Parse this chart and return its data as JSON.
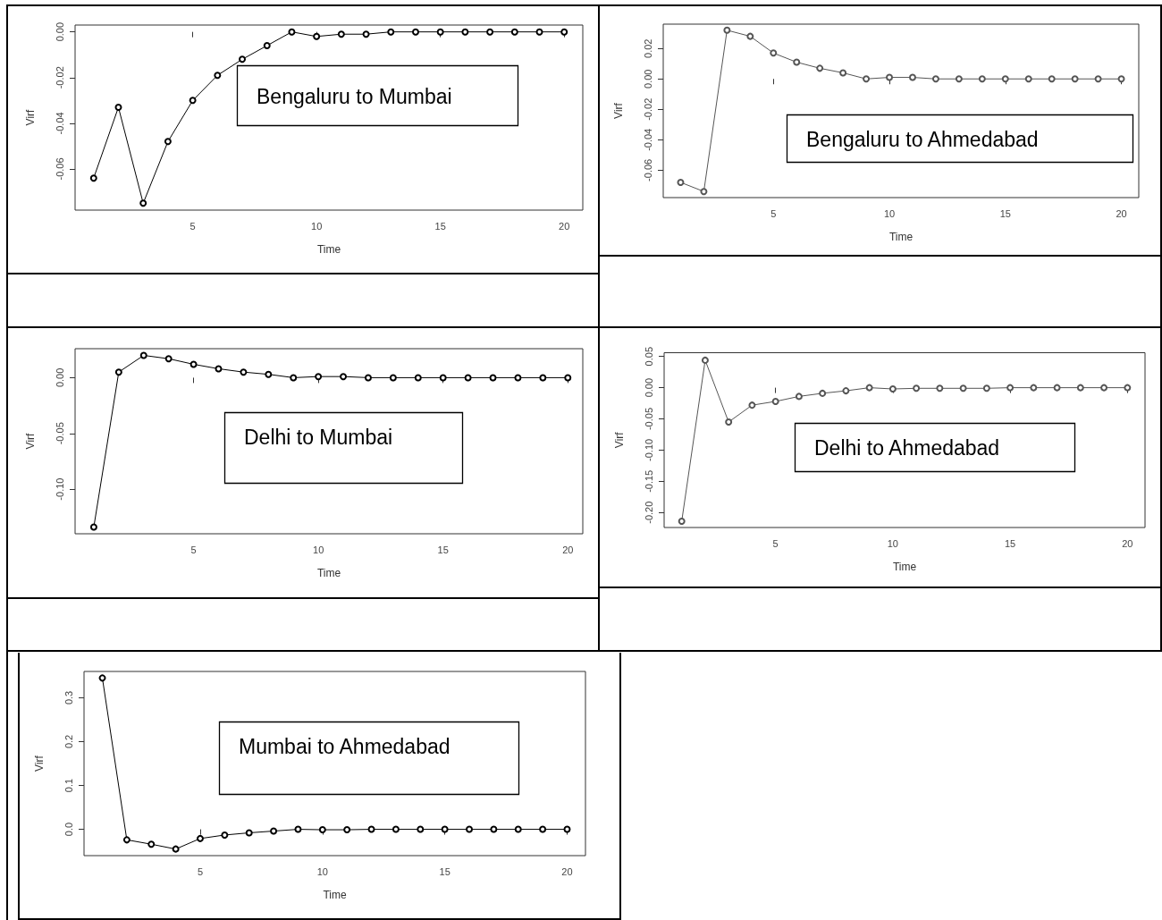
{
  "chart_data": [
    {
      "type": "line",
      "title": "Bengaluru to Mumbai",
      "xlabel": "Time",
      "ylabel": "Virf",
      "marker": "circle",
      "grid": false,
      "x": [
        1,
        2,
        3,
        4,
        5,
        6,
        7,
        8,
        9,
        10,
        11,
        12,
        13,
        14,
        15,
        16,
        17,
        18,
        19,
        20
      ],
      "series": [
        {
          "color": "#000000",
          "values": [
            -0.064,
            -0.033,
            -0.075,
            -0.048,
            -0.03,
            -0.019,
            -0.012,
            -0.006,
            0.0,
            -0.002,
            -0.001,
            -0.001,
            0,
            0,
            0,
            0,
            0,
            0,
            0,
            0
          ]
        }
      ],
      "xlim": [
        0.25,
        20.75
      ],
      "xticks": [
        5,
        10,
        15,
        20
      ],
      "ylim": [
        -0.078,
        0.003
      ],
      "yticks": [
        {
          "value": -0.06,
          "label": "-0.06"
        },
        {
          "value": -0.04,
          "label": "-0.04"
        },
        {
          "value": -0.02,
          "label": "-0.02"
        },
        {
          "value": 0,
          "label": "0.00"
        }
      ]
    },
    {
      "type": "line",
      "title": "Bengaluru to Ahmedabad",
      "xlabel": "Time",
      "ylabel": "Virf",
      "marker": "circle",
      "grid": false,
      "x": [
        1,
        2,
        3,
        4,
        5,
        6,
        7,
        8,
        9,
        10,
        11,
        12,
        13,
        14,
        15,
        16,
        17,
        18,
        19,
        20
      ],
      "series": [
        {
          "color": "#555555",
          "values": [
            -0.068,
            -0.074,
            0.032,
            0.028,
            0.017,
            0.011,
            0.007,
            0.004,
            0,
            0.001,
            0.001,
            0,
            0,
            0,
            0,
            0,
            0,
            0,
            0,
            0
          ]
        }
      ],
      "xlim": [
        0.25,
        20.75
      ],
      "xticks": [
        5,
        10,
        15,
        20
      ],
      "ylim": [
        -0.078,
        0.036
      ],
      "yticks": [
        {
          "value": -0.06,
          "label": "-0.06"
        },
        {
          "value": -0.04,
          "label": "-0.04"
        },
        {
          "value": -0.02,
          "label": "-0.02"
        },
        {
          "value": 0,
          "label": "0.00"
        },
        {
          "value": 0.02,
          "label": "0.02"
        }
      ]
    },
    {
      "type": "line",
      "title": "Delhi to Mumbai",
      "xlabel": "Time",
      "ylabel": "Virf",
      "marker": "circle",
      "grid": false,
      "x": [
        1,
        2,
        3,
        4,
        5,
        6,
        7,
        8,
        9,
        10,
        11,
        12,
        13,
        14,
        15,
        16,
        17,
        18,
        19,
        20
      ],
      "series": [
        {
          "color": "#000000",
          "values": [
            -0.134,
            0.005,
            0.02,
            0.017,
            0.012,
            0.008,
            0.005,
            0.003,
            0,
            0.001,
            0.001,
            0,
            0,
            0,
            0,
            0,
            0,
            0,
            0,
            0
          ]
        }
      ],
      "xlim": [
        0.25,
        20.6
      ],
      "xticks": [
        5,
        10,
        15,
        20
      ],
      "ylim": [
        -0.14,
        0.026
      ],
      "yticks": [
        {
          "value": -0.1,
          "label": "-0.10"
        },
        {
          "value": -0.05,
          "label": "-0.05"
        },
        {
          "value": 0,
          "label": "0.00"
        }
      ]
    },
    {
      "type": "line",
      "title": "Delhi to Ahmedabad",
      "xlabel": "Time",
      "ylabel": "Virf",
      "marker": "circle",
      "grid": false,
      "x": [
        1,
        2,
        3,
        4,
        5,
        6,
        7,
        8,
        9,
        10,
        11,
        12,
        13,
        14,
        15,
        16,
        17,
        18,
        19,
        20
      ],
      "series": [
        {
          "color": "#555555",
          "values": [
            -0.214,
            0.044,
            -0.055,
            -0.028,
            -0.022,
            -0.014,
            -0.009,
            -0.005,
            0,
            -0.002,
            -0.001,
            -0.001,
            -0.001,
            -0.001,
            0,
            0,
            0,
            0,
            0,
            0
          ]
        }
      ],
      "xlim": [
        0.25,
        20.75
      ],
      "xticks": [
        5,
        10,
        15,
        20
      ],
      "ylim": [
        -0.224,
        0.056
      ],
      "yticks": [
        {
          "value": -0.2,
          "label": "-0.20"
        },
        {
          "value": -0.15,
          "label": "-0.15"
        },
        {
          "value": -0.1,
          "label": "-0.10"
        },
        {
          "value": -0.05,
          "label": "-0.05"
        },
        {
          "value": 0,
          "label": "0.00"
        },
        {
          "value": 0.05,
          "label": "0.05"
        }
      ]
    },
    {
      "type": "line",
      "title": "Mumbai to Ahmedabad",
      "xlabel": "Time",
      "ylabel": "Virf",
      "marker": "circle",
      "grid": false,
      "x": [
        1,
        2,
        3,
        4,
        5,
        6,
        7,
        8,
        9,
        10,
        11,
        12,
        13,
        14,
        15,
        16,
        17,
        18,
        19,
        20
      ],
      "series": [
        {
          "color": "#000000",
          "values": [
            0.345,
            -0.024,
            -0.034,
            -0.045,
            -0.021,
            -0.013,
            -0.008,
            -0.004,
            0,
            -0.001,
            -0.001,
            0,
            0,
            0,
            0,
            0,
            0,
            0,
            0,
            0
          ]
        }
      ],
      "xlim": [
        0.25,
        20.75
      ],
      "xticks": [
        5,
        10,
        15,
        20
      ],
      "ylim": [
        -0.06,
        0.36
      ],
      "yticks": [
        {
          "value": 0,
          "label": "0.0"
        },
        {
          "value": 0.1,
          "label": "0.1"
        },
        {
          "value": 0.2,
          "label": "0.2"
        },
        {
          "value": 0.3,
          "label": "0.3"
        }
      ]
    }
  ]
}
